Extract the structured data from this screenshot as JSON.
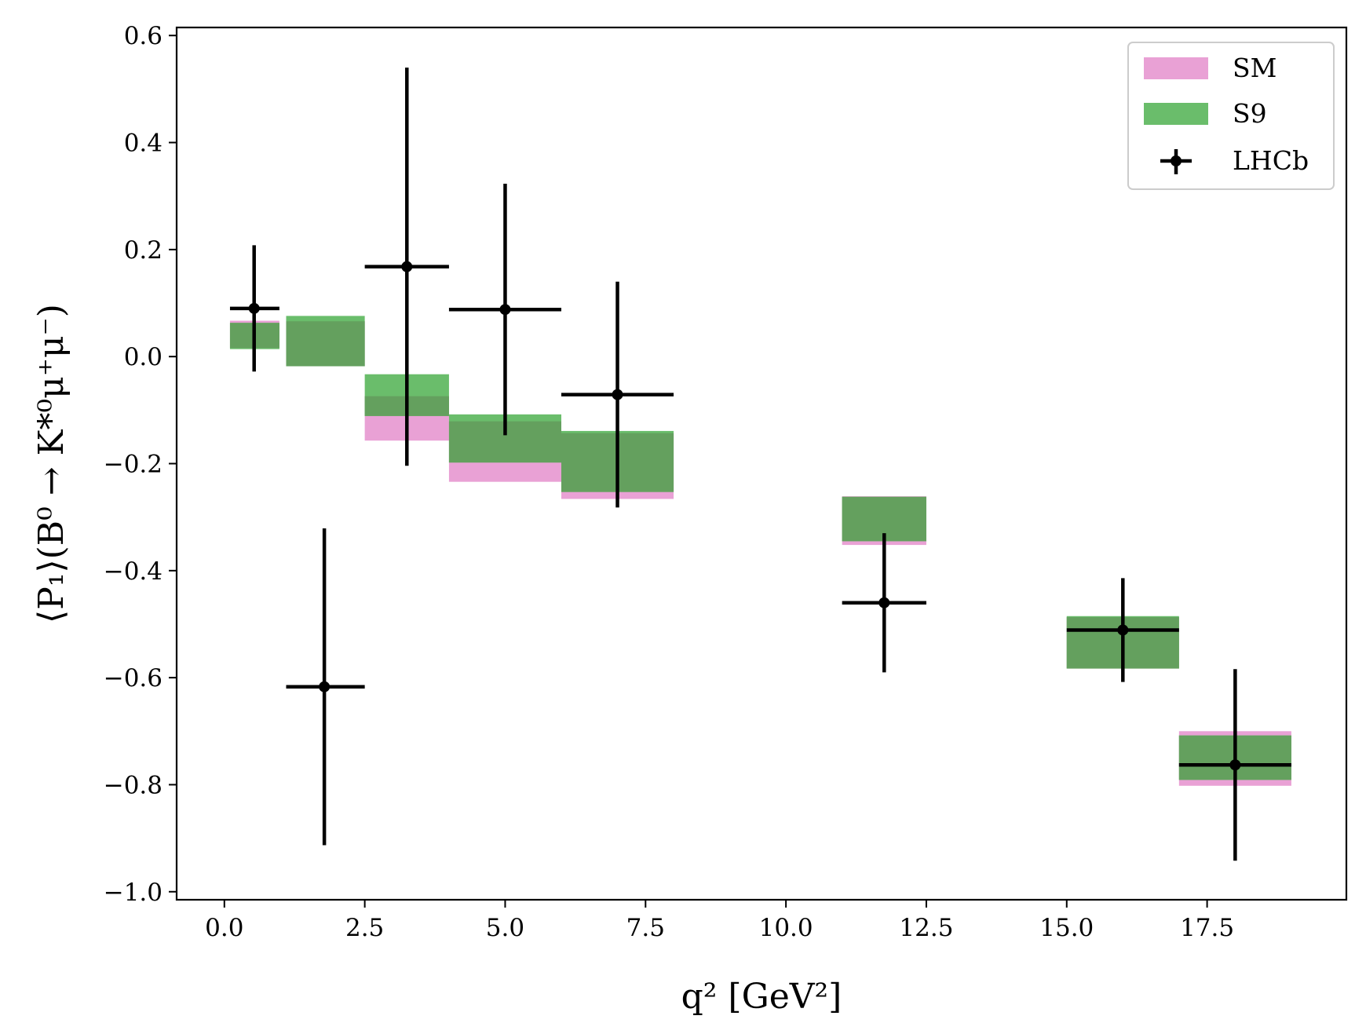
{
  "chart_data": {
    "type": "bar",
    "title": "",
    "xlabel": "q² [GeV²]",
    "ylabel": "⟨P₁⟩(B⁰ → K*⁰μ⁺μ⁻)",
    "xlim": [
      -0.85,
      19.98
    ],
    "ylim": [
      -1.015,
      0.615
    ],
    "xticks": [
      0.0,
      2.5,
      5.0,
      7.5,
      10.0,
      12.5,
      15.0,
      17.5
    ],
    "xtick_labels": [
      "0.0",
      "2.5",
      "5.0",
      "7.5",
      "10.0",
      "12.5",
      "15.0",
      "17.5"
    ],
    "yticks": [
      -1.0,
      -0.8,
      -0.6,
      -0.4,
      -0.2,
      0.0,
      0.2,
      0.4,
      0.6
    ],
    "ytick_labels": [
      "−1.0",
      "−0.8",
      "−0.6",
      "−0.4",
      "−0.2",
      "0.0",
      "0.2",
      "0.4",
      "0.6"
    ],
    "grid": false,
    "legend_position": "top-right",
    "series": [
      {
        "name": "SM",
        "kind": "band",
        "color": "#e9a1d5",
        "bins": [
          {
            "xmin": 0.1,
            "xmax": 0.98,
            "low": 0.016,
            "high": 0.067
          },
          {
            "xmin": 1.1,
            "xmax": 2.5,
            "low": -0.018,
            "high": 0.066
          },
          {
            "xmin": 2.5,
            "xmax": 4.0,
            "low": -0.157,
            "high": -0.074
          },
          {
            "xmin": 4.0,
            "xmax": 6.0,
            "low": -0.234,
            "high": -0.121
          },
          {
            "xmin": 6.0,
            "xmax": 8.0,
            "low": -0.266,
            "high": -0.143
          },
          {
            "xmin": 11.0,
            "xmax": 12.5,
            "low": -0.352,
            "high": -0.261
          },
          {
            "xmin": 15.0,
            "xmax": 17.0,
            "low": -0.583,
            "high": -0.487
          },
          {
            "xmin": 17.0,
            "xmax": 19.0,
            "low": -0.802,
            "high": -0.7
          }
        ]
      },
      {
        "name": "S9",
        "kind": "band",
        "color": "#6abd6b",
        "bins": [
          {
            "xmin": 0.1,
            "xmax": 0.98,
            "low": 0.014,
            "high": 0.063
          },
          {
            "xmin": 1.1,
            "xmax": 2.5,
            "low": -0.018,
            "high": 0.076
          },
          {
            "xmin": 2.5,
            "xmax": 4.0,
            "low": -0.111,
            "high": -0.033
          },
          {
            "xmin": 4.0,
            "xmax": 6.0,
            "low": -0.198,
            "high": -0.108
          },
          {
            "xmin": 6.0,
            "xmax": 8.0,
            "low": -0.253,
            "high": -0.139
          },
          {
            "xmin": 11.0,
            "xmax": 12.5,
            "low": -0.345,
            "high": -0.262
          },
          {
            "xmin": 15.0,
            "xmax": 17.0,
            "low": -0.583,
            "high": -0.485
          },
          {
            "xmin": 17.0,
            "xmax": 19.0,
            "low": -0.791,
            "high": -0.708
          }
        ]
      },
      {
        "name": "LHCb",
        "kind": "errorbar",
        "color": "#000000",
        "points": [
          {
            "x": 0.53,
            "xmin": 0.1,
            "xmax": 0.98,
            "y": 0.09,
            "ylow": -0.028,
            "yhigh": 0.208
          },
          {
            "x": 1.78,
            "xmin": 1.1,
            "xmax": 2.5,
            "y": -0.617,
            "ylow": -0.913,
            "yhigh": -0.321
          },
          {
            "x": 3.25,
            "xmin": 2.5,
            "xmax": 4.0,
            "y": 0.168,
            "ylow": -0.204,
            "yhigh": 0.54
          },
          {
            "x": 5.0,
            "xmin": 4.0,
            "xmax": 6.0,
            "y": 0.088,
            "ylow": -0.147,
            "yhigh": 0.323
          },
          {
            "x": 7.0,
            "xmin": 6.0,
            "xmax": 8.0,
            "y": -0.071,
            "ylow": -0.282,
            "yhigh": 0.14
          },
          {
            "x": 11.75,
            "xmin": 11.0,
            "xmax": 12.5,
            "y": -0.46,
            "ylow": -0.59,
            "yhigh": -0.33
          },
          {
            "x": 16.0,
            "xmin": 15.0,
            "xmax": 17.0,
            "y": -0.511,
            "ylow": -0.608,
            "yhigh": -0.414
          },
          {
            "x": 18.0,
            "xmin": 17.0,
            "xmax": 19.0,
            "y": -0.763,
            "ylow": -0.942,
            "yhigh": -0.584
          }
        ]
      }
    ]
  }
}
